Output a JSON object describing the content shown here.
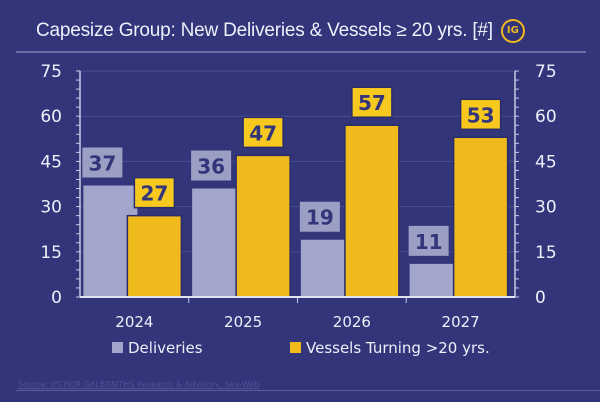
{
  "chart_data": {
    "type": "bar",
    "title": "Capesize Group: New Deliveries & Vessels ≥ 20 yrs. [#]",
    "categories": [
      "2024",
      "2025",
      "2026",
      "2027"
    ],
    "series": [
      {
        "name": "Deliveries",
        "values": [
          37,
          36,
          19,
          11
        ],
        "color": "#a3a6cc",
        "label_bg": "#9c9fc4"
      },
      {
        "name": "Vessels Turning >20 yrs.",
        "values": [
          27,
          47,
          57,
          53
        ],
        "color": "#f0b91c",
        "label_bg": "#f7c81e"
      }
    ],
    "ylim": [
      0,
      75
    ],
    "yticks": [
      0,
      15,
      30,
      45,
      60,
      75
    ],
    "secondary_yaxis": true,
    "grid": true,
    "legend": "bottom",
    "xlabel": "",
    "ylabel": ""
  },
  "logo_text": "IG",
  "source": "Source: IFCHOR GALBRAITHS Research & Advisory, Sea-Web",
  "colors": {
    "background": "#32357a",
    "text": "#eef0fa",
    "label_text": "#32357a"
  }
}
